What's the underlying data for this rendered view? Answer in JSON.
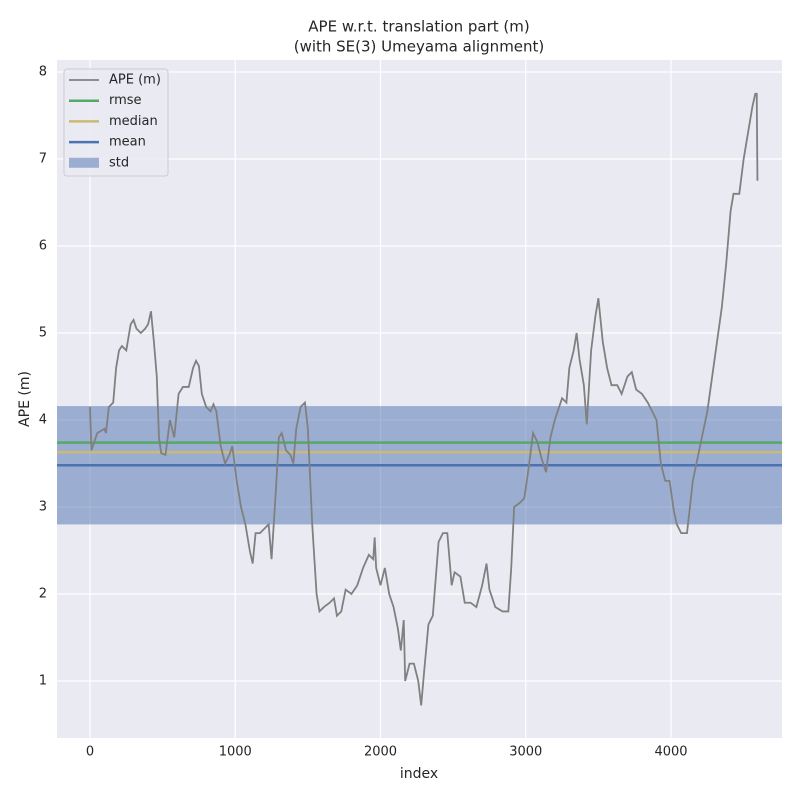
{
  "chart_data": {
    "type": "line",
    "title": "APE w.r.t. translation part (m)",
    "subtitle": "(with SE(3) Umeyama alignment)",
    "x_label": "index",
    "y_label": "APE (m)",
    "xlim": [
      -227,
      4764
    ],
    "ylim": [
      0.345,
      8.138
    ],
    "xticks": [
      0,
      1000,
      2000,
      3000,
      4000
    ],
    "yticks": [
      1,
      2,
      3,
      4,
      5,
      6,
      7,
      8
    ],
    "grid": true,
    "legend": "upper left",
    "series": [
      {
        "name": "APE (m)",
        "color": "#808080",
        "x": [
          0,
          10,
          50,
          100,
          110,
          130,
          160,
          180,
          200,
          220,
          250,
          280,
          300,
          320,
          350,
          380,
          400,
          420,
          440,
          460,
          475,
          490,
          520,
          550,
          580,
          610,
          640,
          680,
          710,
          730,
          750,
          770,
          800,
          830,
          850,
          870,
          900,
          930,
          960,
          980,
          1010,
          1040,
          1070,
          1100,
          1120,
          1140,
          1170,
          1200,
          1230,
          1250,
          1280,
          1300,
          1320,
          1350,
          1380,
          1400,
          1420,
          1450,
          1480,
          1500,
          1530,
          1560,
          1580,
          1610,
          1650,
          1680,
          1700,
          1730,
          1760,
          1800,
          1840,
          1880,
          1920,
          1950,
          1960,
          1970,
          2000,
          2030,
          2060,
          2090,
          2120,
          2140,
          2160,
          2170,
          2200,
          2230,
          2260,
          2280,
          2300,
          2330,
          2360,
          2400,
          2430,
          2460,
          2490,
          2510,
          2550,
          2580,
          2620,
          2660,
          2700,
          2730,
          2750,
          2790,
          2840,
          2880,
          2900,
          2920,
          2960,
          2990,
          3020,
          3050,
          3080,
          3110,
          3140,
          3170,
          3200,
          3250,
          3280,
          3300,
          3330,
          3350,
          3370,
          3400,
          3420,
          3450,
          3480,
          3500,
          3530,
          3560,
          3590,
          3630,
          3660,
          3700,
          3730,
          3760,
          3800,
          3840,
          3870,
          3900,
          3930,
          3960,
          3990,
          4020,
          4040,
          4070,
          4110,
          4150,
          4200,
          4250,
          4300,
          4350,
          4380,
          4410,
          4430,
          4470,
          4500,
          4530,
          4560,
          4580,
          4590,
          4595
        ],
        "values": [
          4.15,
          3.65,
          3.85,
          3.9,
          3.85,
          4.15,
          4.2,
          4.6,
          4.8,
          4.85,
          4.8,
          5.1,
          5.15,
          5.05,
          5.0,
          5.05,
          5.1,
          5.25,
          4.9,
          4.5,
          3.8,
          3.62,
          3.6,
          4.0,
          3.8,
          4.3,
          4.38,
          4.38,
          4.6,
          4.68,
          4.62,
          4.3,
          4.15,
          4.1,
          4.18,
          4.1,
          3.7,
          3.5,
          3.6,
          3.7,
          3.3,
          3.0,
          2.8,
          2.5,
          2.35,
          2.7,
          2.7,
          2.75,
          2.8,
          2.4,
          3.2,
          3.8,
          3.85,
          3.65,
          3.6,
          3.5,
          3.9,
          4.15,
          4.2,
          3.9,
          2.8,
          2.0,
          1.8,
          1.85,
          1.9,
          1.95,
          1.75,
          1.8,
          2.05,
          2.0,
          2.1,
          2.3,
          2.45,
          2.4,
          2.65,
          2.3,
          2.1,
          2.3,
          2.0,
          1.85,
          1.6,
          1.35,
          1.7,
          1.0,
          1.2,
          1.2,
          1.0,
          0.72,
          1.1,
          1.65,
          1.75,
          2.6,
          2.7,
          2.7,
          2.1,
          2.25,
          2.2,
          1.9,
          1.9,
          1.85,
          2.1,
          2.35,
          2.05,
          1.85,
          1.8,
          1.8,
          2.3,
          3.0,
          3.05,
          3.1,
          3.45,
          3.85,
          3.75,
          3.55,
          3.4,
          3.8,
          4.0,
          4.25,
          4.2,
          4.6,
          4.8,
          5.0,
          4.7,
          4.4,
          3.95,
          4.8,
          5.2,
          5.4,
          4.9,
          4.6,
          4.4,
          4.4,
          4.3,
          4.5,
          4.55,
          4.35,
          4.3,
          4.2,
          4.1,
          4.0,
          3.5,
          3.3,
          3.3,
          2.95,
          2.8,
          2.7,
          2.7,
          3.3,
          3.7,
          4.1,
          4.7,
          5.3,
          5.8,
          6.4,
          6.6,
          6.6,
          7.0,
          7.3,
          7.6,
          7.75,
          7.75,
          6.75
        ]
      }
    ],
    "stats": {
      "rmse": {
        "name": "rmse",
        "color": "#55a868",
        "value": 3.74
      },
      "median": {
        "name": "median",
        "color": "#ccb974",
        "value": 3.63
      },
      "mean": {
        "name": "mean",
        "color": "#4c72b0",
        "value": 3.48
      },
      "std": {
        "name": "std",
        "color": "#4c72b0",
        "value": 0.68
      }
    }
  }
}
